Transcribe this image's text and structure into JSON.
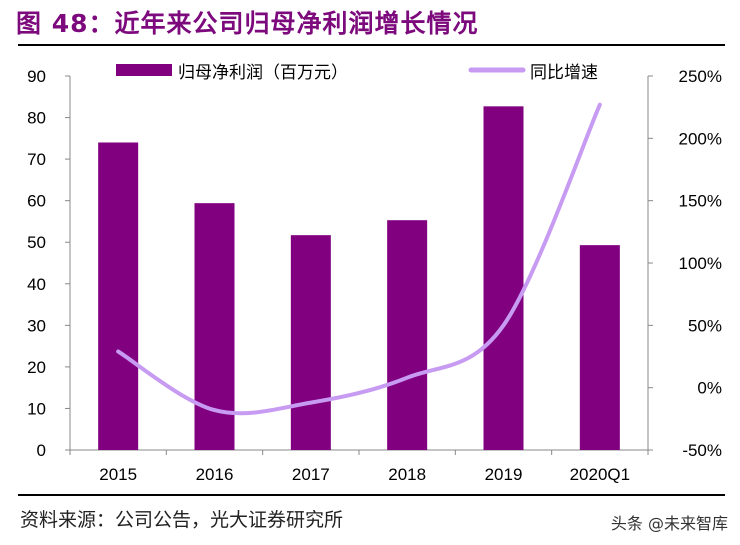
{
  "title": "图 48：近年来公司归母净利润增长情况",
  "source": "资料来源：公司公告，光大证券研究所",
  "watermark": "头条 @未来智库",
  "chart_data": {
    "type": "bar+line",
    "categories": [
      "2015",
      "2016",
      "2017",
      "2018",
      "2019",
      "2020Q1"
    ],
    "series": [
      {
        "name": "归母净利润（百万元）",
        "type": "bar",
        "axis": "left",
        "color": "#800080",
        "values": [
          74.0,
          59.4,
          51.7,
          55.3,
          82.7,
          49.3
        ]
      },
      {
        "name": "同比增速",
        "type": "line",
        "axis": "right",
        "color": "#c79bf2",
        "values": [
          29,
          -18,
          -12,
          8,
          50,
          227
        ]
      }
    ],
    "left_axis": {
      "ylim": [
        0,
        90
      ],
      "ticks": [
        "0",
        "10",
        "20",
        "30",
        "40",
        "50",
        "60",
        "70",
        "80",
        "90"
      ]
    },
    "right_axis": {
      "ylim": [
        -50,
        250
      ],
      "unit": "%",
      "ticks": [
        "-50%",
        "0%",
        "50%",
        "100%",
        "150%",
        "200%",
        "250%"
      ]
    },
    "legend": "top",
    "grid": false
  }
}
